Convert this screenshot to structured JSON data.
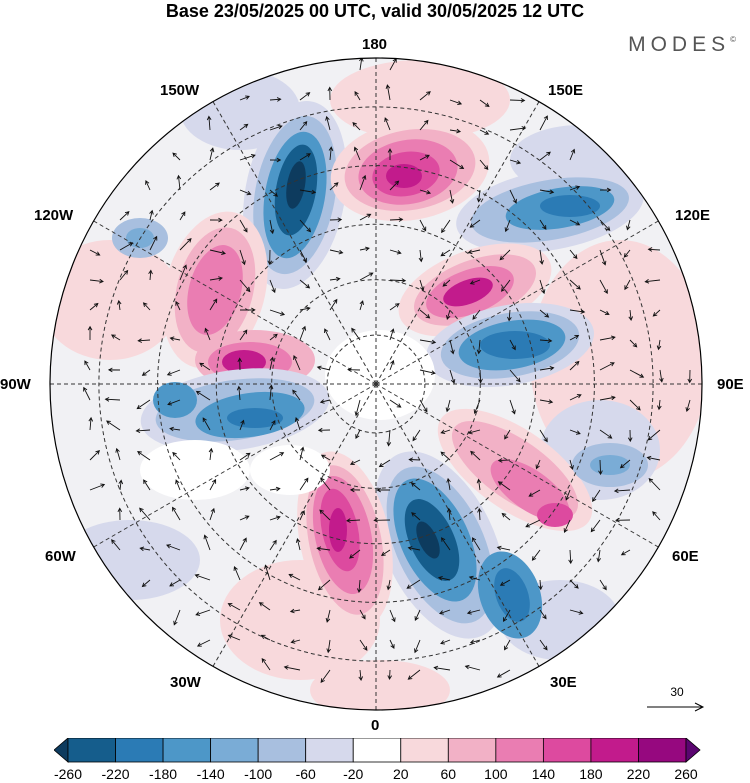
{
  "title": "Base 23/05/2025 00 UTC, valid 30/05/2025 12 UTC",
  "brand": "MODES",
  "brand_mark": "©",
  "longitude_labels": {
    "top": "180",
    "top_left": "150W",
    "top_right": "150E",
    "upper_left": "120W",
    "upper_right": "120E",
    "left": "90W",
    "right": "90E",
    "lower_left": "60W",
    "lower_right": "60E",
    "bottom_left": "30W",
    "bottom_right": "30E",
    "bottom": "0"
  },
  "reference_vector": {
    "label": "30"
  },
  "colorbar": {
    "colors": [
      "#0d3b5e",
      "#155d8c",
      "#2b7bb5",
      "#4d97c8",
      "#7aacd6",
      "#a8bfdf",
      "#d6d9ec",
      "#ffffff",
      "#f8d9dc",
      "#f2b1c6",
      "#ea7db2",
      "#dd4a9f",
      "#c21b8c",
      "#96087f",
      "#5a0570"
    ],
    "ticks": [
      "-260",
      "-220",
      "-180",
      "-140",
      "-100",
      "-60",
      "-20",
      "20",
      "60",
      "100",
      "140",
      "180",
      "220",
      "260"
    ]
  },
  "map": {
    "projection": "north polar stereographic",
    "field_palette": {
      "neg_strong": "#155d8c",
      "neg_mid": "#4d97c8",
      "neg_weak": "#a8bfdf",
      "neg_faint": "#d6d9ec",
      "pos_faint": "#f8d9dc",
      "pos_weak": "#f2b1c6",
      "pos_mid": "#ea7db2",
      "pos_strong": "#c21b8c",
      "pos_max": "#96087f"
    }
  }
}
